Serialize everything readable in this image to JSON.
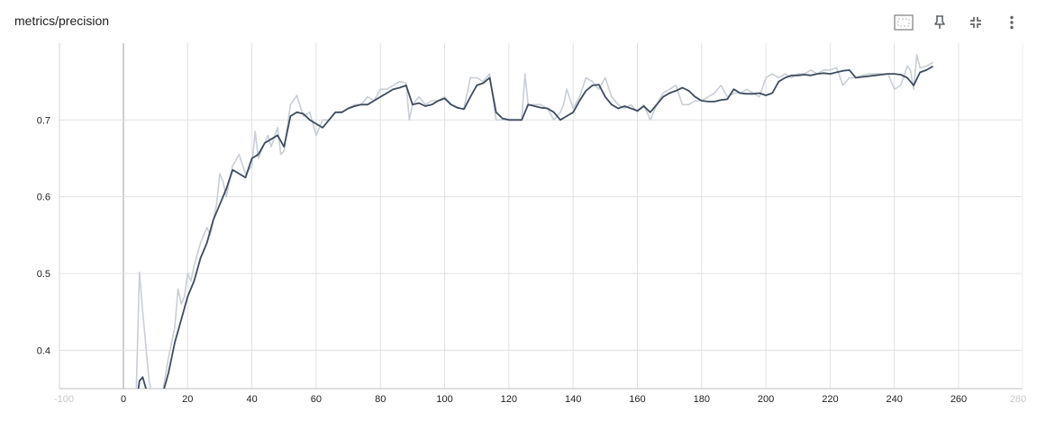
{
  "card": {
    "title": "metrics/precision",
    "toolbar": [
      {
        "name": "fit-domain-button",
        "icon": "fit-to-data-icon"
      },
      {
        "name": "pin-button",
        "icon": "pin-icon"
      },
      {
        "name": "collapse-button",
        "icon": "collapse-icon"
      },
      {
        "name": "more-options-button",
        "icon": "more-vert-icon"
      }
    ]
  },
  "chart_data": {
    "type": "line",
    "title": "metrics/precision",
    "xlabel": "",
    "ylabel": "",
    "xlim": [
      -100,
      280
    ],
    "ylim": [
      0.35,
      0.8
    ],
    "xticks": [
      -100,
      0,
      20,
      40,
      60,
      80,
      100,
      120,
      140,
      160,
      180,
      200,
      220,
      240,
      260,
      280
    ],
    "xtick_labels": [
      "-100",
      "0",
      "20",
      "40",
      "60",
      "80",
      "100",
      "120",
      "140",
      "160",
      "180",
      "200",
      "220",
      "240",
      "260",
      "280"
    ],
    "faded_xtick_labels": [
      "-100",
      "280"
    ],
    "yticks": [
      0.4,
      0.5,
      0.6,
      0.7
    ],
    "ytick_labels": [
      "0.4",
      "0.5",
      "0.6",
      "0.7"
    ],
    "grid": true,
    "colors": {
      "raw": "#c9ced6",
      "smoothed": "#3f4b5f",
      "grid": "#e0e0e0",
      "axis": "#9e9e9e"
    },
    "series": [
      {
        "role": "raw",
        "x": [
          0,
          2,
          4,
          5,
          6,
          8,
          10,
          12,
          14,
          16,
          17,
          18,
          19,
          20,
          21,
          22,
          24,
          26,
          27,
          28,
          29,
          30,
          31,
          32,
          34,
          36,
          38,
          39,
          40,
          41,
          42,
          44,
          45,
          46,
          48,
          49,
          50,
          52,
          54,
          56,
          58,
          60,
          62,
          64,
          66,
          68,
          70,
          72,
          74,
          76,
          78,
          80,
          82,
          84,
          86,
          88,
          89,
          90,
          92,
          94,
          96,
          98,
          100,
          102,
          104,
          106,
          108,
          110,
          112,
          114,
          116,
          118,
          120,
          122,
          124,
          125,
          126,
          128,
          130,
          132,
          134,
          136,
          137,
          138,
          140,
          142,
          144,
          146,
          148,
          150,
          152,
          154,
          156,
          158,
          160,
          162,
          164,
          166,
          168,
          170,
          172,
          174,
          176,
          178,
          180,
          182,
          184,
          186,
          188,
          190,
          192,
          194,
          196,
          198,
          200,
          202,
          204,
          206,
          208,
          210,
          212,
          214,
          216,
          218,
          220,
          222,
          224,
          226,
          228,
          230,
          232,
          234,
          236,
          238,
          240,
          242,
          244,
          245,
          246,
          247,
          248,
          250,
          252
        ],
        "y": [
          0.33,
          0.31,
          0.35,
          0.502,
          0.45,
          0.36,
          0.32,
          0.34,
          0.39,
          0.43,
          0.48,
          0.46,
          0.47,
          0.5,
          0.49,
          0.51,
          0.54,
          0.56,
          0.55,
          0.57,
          0.59,
          0.63,
          0.62,
          0.6,
          0.64,
          0.655,
          0.63,
          0.635,
          0.64,
          0.685,
          0.65,
          0.67,
          0.68,
          0.665,
          0.69,
          0.655,
          0.66,
          0.72,
          0.732,
          0.705,
          0.71,
          0.68,
          0.7,
          0.7,
          0.71,
          0.71,
          0.715,
          0.72,
          0.72,
          0.73,
          0.725,
          0.74,
          0.74,
          0.745,
          0.75,
          0.748,
          0.7,
          0.72,
          0.73,
          0.72,
          0.725,
          0.725,
          0.73,
          0.72,
          0.715,
          0.715,
          0.755,
          0.755,
          0.75,
          0.76,
          0.7,
          0.7,
          0.7,
          0.7,
          0.7,
          0.76,
          0.72,
          0.72,
          0.72,
          0.715,
          0.7,
          0.71,
          0.72,
          0.74,
          0.715,
          0.73,
          0.755,
          0.75,
          0.74,
          0.755,
          0.73,
          0.72,
          0.715,
          0.72,
          0.71,
          0.72,
          0.7,
          0.72,
          0.735,
          0.74,
          0.745,
          0.72,
          0.72,
          0.725,
          0.725,
          0.73,
          0.735,
          0.745,
          0.73,
          0.735,
          0.735,
          0.74,
          0.735,
          0.73,
          0.755,
          0.76,
          0.755,
          0.76,
          0.755,
          0.76,
          0.76,
          0.765,
          0.76,
          0.765,
          0.765,
          0.768,
          0.745,
          0.755,
          0.755,
          0.758,
          0.76,
          0.76,
          0.76,
          0.76,
          0.74,
          0.745,
          0.77,
          0.765,
          0.74,
          0.785,
          0.768,
          0.77,
          0.775
        ]
      },
      {
        "role": "smoothed",
        "x": [
          0,
          2,
          4,
          5,
          6,
          7,
          8,
          10,
          12,
          14,
          16,
          18,
          20,
          22,
          24,
          26,
          28,
          30,
          32,
          34,
          36,
          38,
          40,
          42,
          44,
          46,
          48,
          50,
          52,
          54,
          56,
          58,
          60,
          62,
          64,
          66,
          68,
          70,
          72,
          74,
          76,
          78,
          80,
          82,
          84,
          86,
          88,
          90,
          92,
          94,
          96,
          98,
          100,
          102,
          104,
          106,
          108,
          110,
          112,
          114,
          116,
          118,
          120,
          122,
          124,
          126,
          128,
          130,
          132,
          134,
          136,
          138,
          140,
          142,
          144,
          146,
          148,
          150,
          152,
          154,
          156,
          158,
          160,
          162,
          164,
          166,
          168,
          170,
          172,
          174,
          176,
          178,
          180,
          182,
          184,
          186,
          188,
          190,
          192,
          194,
          196,
          198,
          200,
          202,
          204,
          206,
          208,
          210,
          212,
          214,
          216,
          218,
          220,
          222,
          224,
          226,
          228,
          230,
          232,
          234,
          236,
          238,
          240,
          242,
          244,
          246,
          248,
          250,
          252
        ],
        "y": [
          0.33,
          0.32,
          0.33,
          0.36,
          0.365,
          0.35,
          0.33,
          0.33,
          0.34,
          0.37,
          0.41,
          0.44,
          0.47,
          0.49,
          0.52,
          0.54,
          0.57,
          0.59,
          0.61,
          0.635,
          0.63,
          0.625,
          0.65,
          0.655,
          0.67,
          0.675,
          0.68,
          0.665,
          0.705,
          0.71,
          0.708,
          0.7,
          0.695,
          0.69,
          0.7,
          0.71,
          0.71,
          0.715,
          0.718,
          0.72,
          0.72,
          0.725,
          0.73,
          0.735,
          0.74,
          0.742,
          0.745,
          0.72,
          0.722,
          0.718,
          0.72,
          0.725,
          0.728,
          0.72,
          0.716,
          0.714,
          0.73,
          0.745,
          0.748,
          0.755,
          0.71,
          0.702,
          0.7,
          0.7,
          0.7,
          0.72,
          0.718,
          0.716,
          0.715,
          0.71,
          0.7,
          0.705,
          0.71,
          0.725,
          0.738,
          0.745,
          0.746,
          0.73,
          0.72,
          0.715,
          0.718,
          0.715,
          0.712,
          0.718,
          0.71,
          0.72,
          0.73,
          0.735,
          0.738,
          0.742,
          0.738,
          0.73,
          0.725,
          0.724,
          0.724,
          0.726,
          0.727,
          0.74,
          0.735,
          0.734,
          0.734,
          0.735,
          0.732,
          0.735,
          0.75,
          0.755,
          0.758,
          0.758,
          0.759,
          0.758,
          0.76,
          0.761,
          0.76,
          0.762,
          0.764,
          0.765,
          0.755,
          0.756,
          0.757,
          0.758,
          0.759,
          0.76,
          0.76,
          0.759,
          0.755,
          0.745,
          0.762,
          0.765,
          0.77
        ]
      }
    ]
  }
}
